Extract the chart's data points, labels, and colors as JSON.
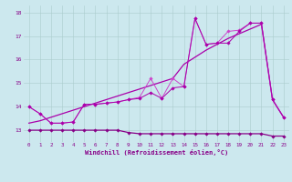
{
  "x": [
    0,
    1,
    2,
    3,
    4,
    5,
    6,
    7,
    8,
    9,
    10,
    11,
    12,
    13,
    14,
    15,
    16,
    17,
    18,
    19,
    20,
    21,
    22,
    23
  ],
  "line_jagged1": [
    14.0,
    13.7,
    13.3,
    13.3,
    13.35,
    14.1,
    14.1,
    14.15,
    14.2,
    14.3,
    14.4,
    15.2,
    14.35,
    15.2,
    14.85,
    17.75,
    16.65,
    16.7,
    17.2,
    17.25,
    17.55,
    17.55,
    14.3,
    13.55
  ],
  "line_jagged2": [
    14.0,
    13.7,
    13.3,
    13.3,
    13.35,
    14.1,
    14.1,
    14.15,
    14.2,
    14.3,
    14.35,
    14.6,
    14.35,
    14.8,
    14.85,
    17.75,
    16.65,
    16.7,
    16.7,
    17.2,
    17.55,
    17.55,
    14.3,
    13.55
  ],
  "line_trend": [
    13.3,
    13.4,
    13.55,
    13.7,
    13.85,
    14.0,
    14.15,
    14.3,
    14.45,
    14.6,
    14.75,
    14.9,
    15.05,
    15.2,
    15.8,
    16.1,
    16.4,
    16.65,
    16.9,
    17.1,
    17.3,
    17.5,
    14.3,
    13.55
  ],
  "line_flat": [
    13.0,
    13.0,
    13.0,
    13.0,
    13.0,
    13.0,
    13.0,
    13.0,
    13.0,
    12.9,
    12.85,
    12.85,
    12.85,
    12.85,
    12.85,
    12.85,
    12.85,
    12.85,
    12.85,
    12.85,
    12.85,
    12.85,
    12.75,
    12.75
  ],
  "color_jagged": "#cc44cc",
  "color_trend": "#aa00aa",
  "color_flat": "#880088",
  "bg_color": "#cce8ee",
  "grid_color": "#aacccc",
  "xlabel": "Windchill (Refroidissement éolien,°C)",
  "ylim_min": 12.5,
  "ylim_max": 18.3,
  "xlim_min": -0.5,
  "xlim_max": 23.5,
  "yticks": [
    13,
    14,
    15,
    16,
    17,
    18
  ],
  "xticks": [
    0,
    1,
    2,
    3,
    4,
    5,
    6,
    7,
    8,
    9,
    10,
    11,
    12,
    13,
    14,
    15,
    16,
    17,
    18,
    19,
    20,
    21,
    22,
    23
  ]
}
